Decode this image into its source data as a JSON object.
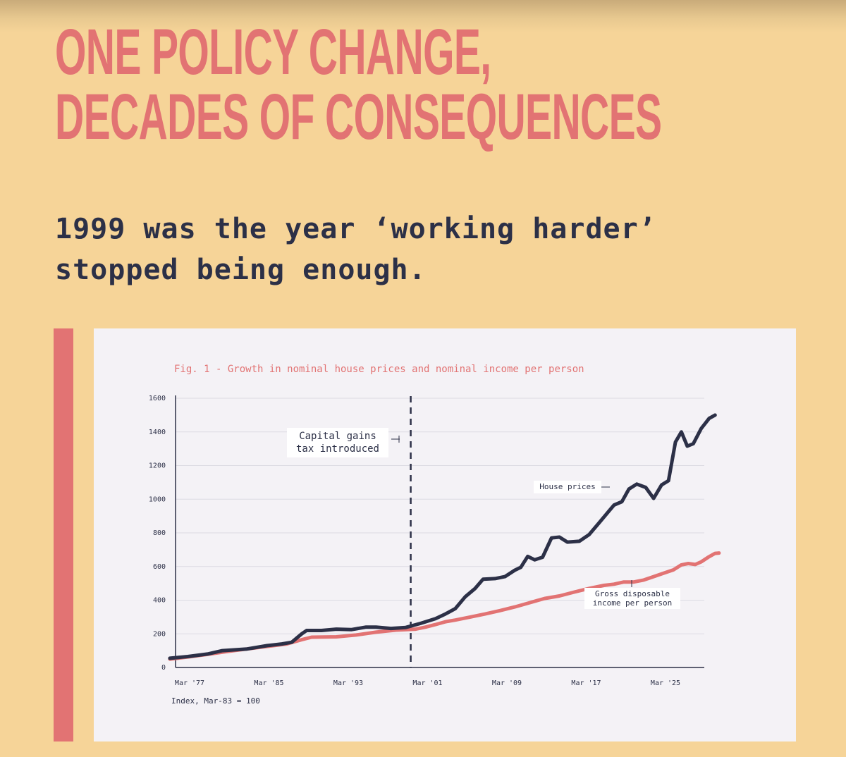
{
  "headline": {
    "line1": "ONE POLICY CHANGE,",
    "line2": "DECADES OF CONSEQUENCES"
  },
  "subtitle": {
    "line1": "1999 was the year ‘working harder’",
    "line2": "stopped being enough."
  },
  "colors": {
    "background": "#f6d498",
    "accent": "#e27373",
    "house_line": "#2c3047",
    "income_line": "#e27373",
    "card": "#f4f2f6"
  },
  "chart_data": {
    "type": "line",
    "title": "Fig. 1 - Growth in nominal house prices and nominal income per person",
    "note": "Index, Mar-83 = 100",
    "xlabel": "",
    "ylabel": "",
    "xlim": [
      1975.2,
      2028.2
    ],
    "ylim": [
      0,
      1600
    ],
    "x_ticks": [
      {
        "value": 1977.2,
        "label": "Mar '77"
      },
      {
        "value": 1985.2,
        "label": "Mar '85"
      },
      {
        "value": 1993.2,
        "label": "Mar '93"
      },
      {
        "value": 2001.2,
        "label": "Mar '01"
      },
      {
        "value": 2009.2,
        "label": "Mar '09"
      },
      {
        "value": 2017.2,
        "label": "Mar '17"
      },
      {
        "value": 2025.2,
        "label": "Mar '25"
      }
    ],
    "y_ticks": [
      0,
      200,
      400,
      600,
      800,
      1000,
      1200,
      1400,
      1600
    ],
    "grid": "horizontal",
    "series": [
      {
        "name": "House prices",
        "color": "#2c3047",
        "points": [
          [
            1975.2,
            55
          ],
          [
            1977.0,
            65
          ],
          [
            1979.0,
            80
          ],
          [
            1980.5,
            100
          ],
          [
            1983.0,
            110
          ],
          [
            1985.0,
            130
          ],
          [
            1986.5,
            140
          ],
          [
            1987.5,
            150
          ],
          [
            1988.5,
            200
          ],
          [
            1989.0,
            220
          ],
          [
            1990.5,
            220
          ],
          [
            1992.0,
            228
          ],
          [
            1993.5,
            225
          ],
          [
            1995.0,
            240
          ],
          [
            1996.0,
            240
          ],
          [
            1997.5,
            232
          ],
          [
            1999.0,
            238
          ],
          [
            2000.5,
            262
          ],
          [
            2002.0,
            290
          ],
          [
            2003.0,
            318
          ],
          [
            2004.0,
            350
          ],
          [
            2005.0,
            420
          ],
          [
            2006.0,
            470
          ],
          [
            2006.8,
            525
          ],
          [
            2008.0,
            528
          ],
          [
            2009.0,
            540
          ],
          [
            2010.0,
            578
          ],
          [
            2010.6,
            595
          ],
          [
            2011.3,
            660
          ],
          [
            2012.0,
            640
          ],
          [
            2012.8,
            655
          ],
          [
            2013.7,
            770
          ],
          [
            2014.5,
            775
          ],
          [
            2015.3,
            745
          ],
          [
            2016.5,
            750
          ],
          [
            2017.5,
            790
          ],
          [
            2018.5,
            860
          ],
          [
            2019.5,
            930
          ],
          [
            2020.0,
            965
          ],
          [
            2020.8,
            985
          ],
          [
            2021.5,
            1060
          ],
          [
            2022.3,
            1090
          ],
          [
            2023.2,
            1070
          ],
          [
            2024.0,
            1005
          ],
          [
            2024.8,
            1085
          ],
          [
            2025.5,
            1110
          ],
          [
            2026.2,
            1340
          ],
          [
            2026.8,
            1400
          ],
          [
            2027.4,
            1315
          ],
          [
            2028.0,
            1330
          ],
          [
            2028.8,
            1420
          ],
          [
            2029.6,
            1480
          ],
          [
            2030.2,
            1500
          ]
        ]
      },
      {
        "name": "Gross disposable income per person",
        "color": "#e27373",
        "points": [
          [
            1975.2,
            50
          ],
          [
            1977.0,
            62
          ],
          [
            1979.0,
            78
          ],
          [
            1981.0,
            95
          ],
          [
            1983.0,
            110
          ],
          [
            1985.0,
            125
          ],
          [
            1987.0,
            140
          ],
          [
            1988.5,
            165
          ],
          [
            1989.5,
            180
          ],
          [
            1992.0,
            182
          ],
          [
            1994.0,
            193
          ],
          [
            1996.0,
            210
          ],
          [
            1998.0,
            222
          ],
          [
            2000.0,
            228
          ],
          [
            2001.0,
            240
          ],
          [
            2002.0,
            255
          ],
          [
            2003.0,
            272
          ],
          [
            2004.0,
            282
          ],
          [
            2005.5,
            300
          ],
          [
            2007.0,
            318
          ],
          [
            2008.5,
            338
          ],
          [
            2010.0,
            360
          ],
          [
            2011.5,
            385
          ],
          [
            2013.0,
            410
          ],
          [
            2014.5,
            425
          ],
          [
            2016.0,
            448
          ],
          [
            2017.5,
            470
          ],
          [
            2019.0,
            488
          ],
          [
            2020.0,
            495
          ],
          [
            2021.0,
            508
          ],
          [
            2022.0,
            508
          ],
          [
            2023.0,
            520
          ],
          [
            2024.0,
            540
          ],
          [
            2025.0,
            560
          ],
          [
            2026.0,
            580
          ],
          [
            2026.8,
            610
          ],
          [
            2027.5,
            618
          ],
          [
            2028.2,
            612
          ],
          [
            2028.8,
            628
          ],
          [
            2029.5,
            655
          ],
          [
            2030.2,
            678
          ],
          [
            2030.6,
            680
          ]
        ]
      }
    ],
    "annotations": {
      "policy_year": 1999.5,
      "policy_line1": "Capital gains",
      "policy_line2": "tax introduced",
      "house_label": "House prices",
      "income_line1": "Gross disposable",
      "income_line2": "income per person"
    }
  }
}
